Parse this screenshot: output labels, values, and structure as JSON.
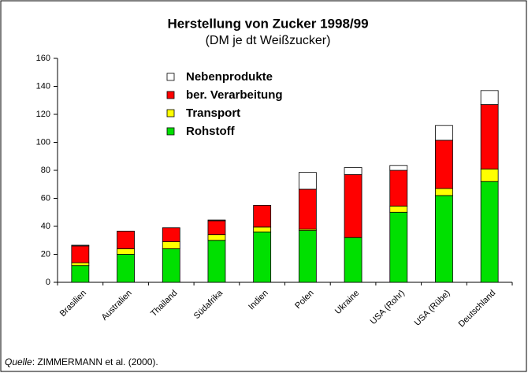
{
  "chart_data": {
    "type": "stacked_bar",
    "title": "Herstellung von Zucker 1998/99",
    "subtitle": "(DM je dt Weißzucker)",
    "categories": [
      "Brasilien",
      "Australien",
      "Thailand",
      "Südafrika",
      "Indien",
      "Polen",
      "Ukraine",
      "USA (Rohr)",
      "USA (Rübe)",
      "Deutschland"
    ],
    "series": [
      {
        "name": "Rohstoff",
        "color": "#00e000",
        "values": [
          12,
          20,
          24,
          30,
          36,
          37,
          32,
          50,
          62,
          72
        ]
      },
      {
        "name": "Transport",
        "color": "#ffff00",
        "values": [
          2,
          4,
          5,
          4,
          3.5,
          1,
          0,
          4.5,
          5,
          9
        ]
      },
      {
        "name": "ber. Verarbeitung",
        "color": "#ff0000",
        "values": [
          12,
          12.5,
          10,
          10,
          15.5,
          28.5,
          45,
          25.5,
          34.5,
          46
        ]
      },
      {
        "name": "Nebenprodukte",
        "color": "#ffffff",
        "values": [
          0.5,
          0,
          0,
          0.5,
          0,
          12,
          5,
          3.5,
          10.5,
          10
        ]
      }
    ],
    "ylim": [
      0,
      160
    ],
    "yticks": [
      0,
      20,
      40,
      60,
      80,
      100,
      120,
      140,
      160
    ],
    "source_label": "Quelle",
    "source_text": ": ZIMMERMANN et al. (2000)."
  }
}
